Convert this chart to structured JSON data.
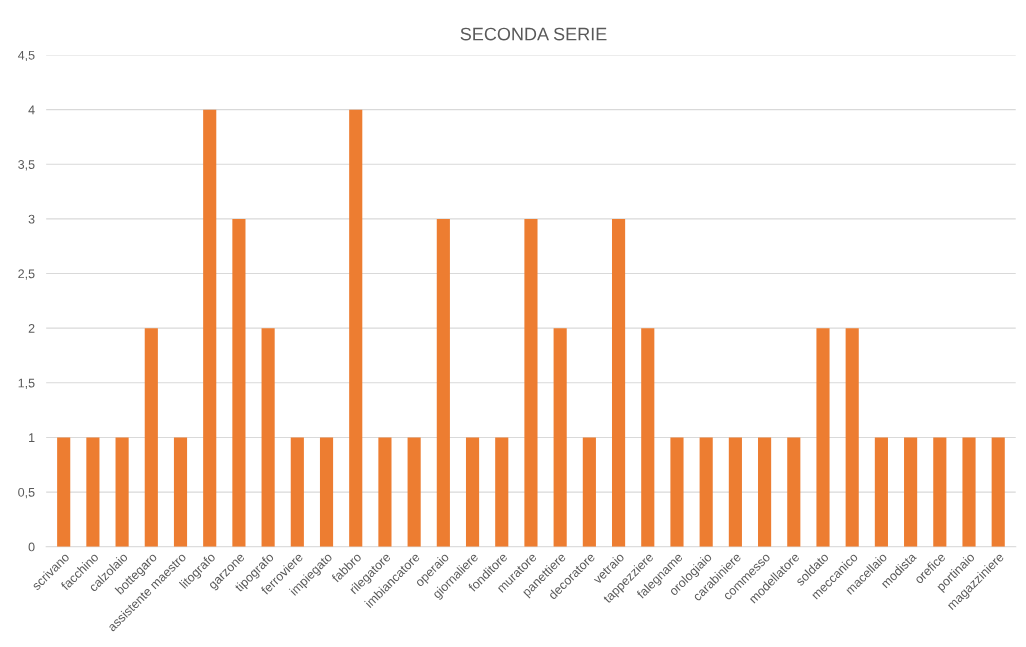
{
  "chart_data": {
    "type": "bar",
    "title": "SECONDA SERIE",
    "categories": [
      "scrivano",
      "facchino",
      "calzolaio",
      "bottegaro",
      "assistente maestro",
      "litografo",
      "garzone",
      "tipografo",
      "ferroviere",
      "impiegato",
      "fabbro",
      "rilegatore",
      "imbiancatore",
      "operaio",
      "giornaliere",
      "fonditore",
      "muratore",
      "panettiere",
      "decoratore",
      "vetraio",
      "tappezziere",
      "falegname",
      "orologiaio",
      "carabiniere",
      "commesso",
      "modellatore",
      "soldato",
      "meccanico",
      "macellaio",
      "modista",
      "orefice",
      "portinaio",
      "magazziniere"
    ],
    "values": [
      1,
      1,
      1,
      2,
      1,
      4,
      3,
      2,
      1,
      1,
      4,
      1,
      1,
      3,
      1,
      1,
      3,
      2,
      1,
      3,
      2,
      1,
      1,
      1,
      1,
      1,
      2,
      2,
      1,
      1,
      1,
      1,
      1
    ],
    "color": "#ed7d31",
    "ylim": [
      0,
      4.5
    ],
    "yticks": [
      0,
      {
        "value": 0.5,
        "label": "0,5"
      },
      1,
      {
        "value": 1.5,
        "label": "1,5"
      },
      2,
      {
        "value": 2.5,
        "label": "2,5"
      },
      3,
      {
        "value": 3.5,
        "label": "3,5"
      },
      4,
      {
        "value": 4.5,
        "label": "4,5"
      }
    ],
    "grid": "y",
    "legend": false
  }
}
